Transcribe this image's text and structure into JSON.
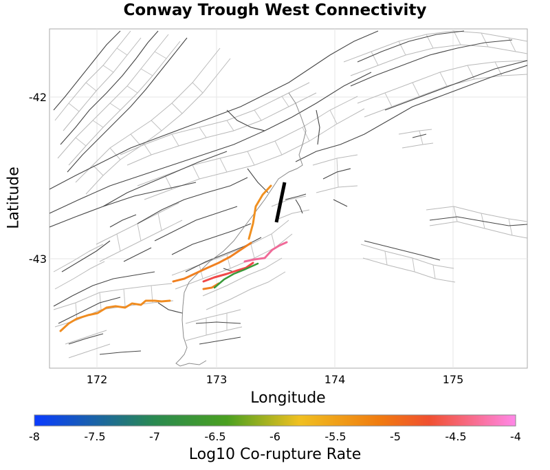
{
  "title": "Conway Trough West Connectivity",
  "x_axis": {
    "label": "Longitude",
    "ticks": [
      "172",
      "173",
      "174",
      "175"
    ],
    "range": [
      171.6,
      175.6
    ]
  },
  "y_axis": {
    "label": "Latitude",
    "ticks": [
      "-42",
      "-43"
    ],
    "range": [
      -43.67,
      -41.58
    ]
  },
  "colorbar": {
    "label": "Log10 Co-rupture Rate",
    "ticks": [
      "-8",
      "-7.5",
      "-7",
      "-6.5",
      "-6",
      "-5.5",
      "-5",
      "-4.5",
      "-4"
    ],
    "range": [
      -8,
      -4
    ],
    "colors": [
      "#0a3bff",
      "#2a9a2a",
      "#f0c020",
      "#f07a10",
      "#f05030",
      "#ff88e8"
    ]
  },
  "target_fault_color": "#000000",
  "background_fault_color": "#444444",
  "fault_outline_color": "#b0b0b0",
  "coast_color": "#888888",
  "ruptures": [
    {
      "name": "west-orange-1",
      "log10_rate": -5.4,
      "color": "#f08c20"
    },
    {
      "name": "central-orange-2",
      "log10_rate": -5.3,
      "color": "#f08020"
    },
    {
      "name": "north-orange-3",
      "log10_rate": -5.4,
      "color": "#f09020"
    },
    {
      "name": "red-segment",
      "log10_rate": -4.7,
      "color": "#f04848"
    },
    {
      "name": "pink-segment",
      "log10_rate": -4.4,
      "color": "#f06a98"
    },
    {
      "name": "green-segment",
      "log10_rate": -6.9,
      "color": "#3a9a3a"
    }
  ]
}
